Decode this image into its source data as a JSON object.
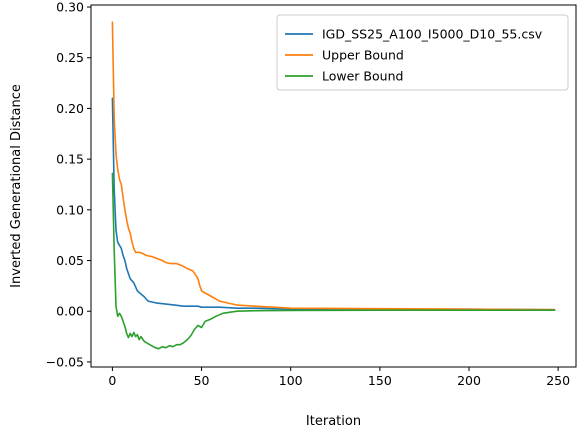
{
  "chart_data": {
    "type": "line",
    "xlabel": "Iteration",
    "ylabel": "Inverted Generational Distance",
    "xlim": [
      -12,
      260
    ],
    "ylim": [
      -0.055,
      0.302
    ],
    "xticks": [
      0,
      50,
      100,
      150,
      200,
      250
    ],
    "yticks": [
      -0.05,
      0.0,
      0.05,
      0.1,
      0.15,
      0.2,
      0.25,
      0.3
    ],
    "ytick_labels": [
      "−0.05",
      "0.00",
      "0.05",
      "0.10",
      "0.15",
      "0.20",
      "0.25",
      "0.30"
    ],
    "grid": false,
    "legend_position": "top-right",
    "series": [
      {
        "name": "IGD_SS25_A100_I5000_D10_55.csv",
        "color": "#1f77b4",
        "points": [
          [
            0,
            0.21
          ],
          [
            1,
            0.12
          ],
          [
            2,
            0.08
          ],
          [
            3,
            0.068
          ],
          [
            4,
            0.065
          ],
          [
            5,
            0.062
          ],
          [
            6,
            0.055
          ],
          [
            7,
            0.05
          ],
          [
            8,
            0.042
          ],
          [
            10,
            0.032
          ],
          [
            12,
            0.028
          ],
          [
            14,
            0.02
          ],
          [
            16,
            0.017
          ],
          [
            18,
            0.014
          ],
          [
            20,
            0.01
          ],
          [
            25,
            0.008
          ],
          [
            30,
            0.007
          ],
          [
            35,
            0.006
          ],
          [
            40,
            0.005
          ],
          [
            48,
            0.005
          ],
          [
            50,
            0.004
          ],
          [
            60,
            0.004
          ],
          [
            70,
            0.003
          ],
          [
            80,
            0.003
          ],
          [
            100,
            0.002
          ],
          [
            150,
            0.002
          ],
          [
            200,
            0.002
          ],
          [
            248,
            0.0015
          ]
        ]
      },
      {
        "name": "Upper Bound",
        "color": "#ff7f0e",
        "points": [
          [
            0,
            0.285
          ],
          [
            1,
            0.19
          ],
          [
            2,
            0.155
          ],
          [
            3,
            0.14
          ],
          [
            4,
            0.13
          ],
          [
            5,
            0.125
          ],
          [
            6,
            0.112
          ],
          [
            7,
            0.1
          ],
          [
            8,
            0.09
          ],
          [
            9,
            0.082
          ],
          [
            10,
            0.077
          ],
          [
            11,
            0.068
          ],
          [
            12,
            0.062
          ],
          [
            13,
            0.058
          ],
          [
            15,
            0.058
          ],
          [
            17,
            0.057
          ],
          [
            19,
            0.055
          ],
          [
            22,
            0.054
          ],
          [
            25,
            0.052
          ],
          [
            28,
            0.05
          ],
          [
            30,
            0.048
          ],
          [
            33,
            0.047
          ],
          [
            36,
            0.047
          ],
          [
            39,
            0.045
          ],
          [
            42,
            0.042
          ],
          [
            45,
            0.04
          ],
          [
            47,
            0.035
          ],
          [
            48,
            0.032
          ],
          [
            49,
            0.025
          ],
          [
            50,
            0.02
          ],
          [
            53,
            0.017
          ],
          [
            56,
            0.014
          ],
          [
            60,
            0.01
          ],
          [
            65,
            0.008
          ],
          [
            70,
            0.006
          ],
          [
            80,
            0.005
          ],
          [
            90,
            0.004
          ],
          [
            100,
            0.003
          ],
          [
            150,
            0.0025
          ],
          [
            200,
            0.002
          ],
          [
            248,
            0.0015
          ]
        ]
      },
      {
        "name": "Lower Bound",
        "color": "#2ca02c",
        "points": [
          [
            0,
            0.136
          ],
          [
            1,
            0.06
          ],
          [
            2,
            0.005
          ],
          [
            3,
            -0.005
          ],
          [
            4,
            -0.002
          ],
          [
            5,
            -0.005
          ],
          [
            6,
            -0.01
          ],
          [
            7,
            -0.015
          ],
          [
            8,
            -0.022
          ],
          [
            9,
            -0.026
          ],
          [
            10,
            -0.022
          ],
          [
            11,
            -0.025
          ],
          [
            12,
            -0.021
          ],
          [
            13,
            -0.025
          ],
          [
            14,
            -0.023
          ],
          [
            15,
            -0.028
          ],
          [
            16,
            -0.025
          ],
          [
            18,
            -0.03
          ],
          [
            20,
            -0.032
          ],
          [
            22,
            -0.034
          ],
          [
            24,
            -0.036
          ],
          [
            26,
            -0.037
          ],
          [
            28,
            -0.035
          ],
          [
            30,
            -0.036
          ],
          [
            32,
            -0.034
          ],
          [
            34,
            -0.035
          ],
          [
            36,
            -0.033
          ],
          [
            38,
            -0.033
          ],
          [
            40,
            -0.031
          ],
          [
            42,
            -0.028
          ],
          [
            44,
            -0.024
          ],
          [
            46,
            -0.018
          ],
          [
            48,
            -0.014
          ],
          [
            50,
            -0.016
          ],
          [
            52,
            -0.01
          ],
          [
            55,
            -0.008
          ],
          [
            58,
            -0.005
          ],
          [
            62,
            -0.002
          ],
          [
            66,
            -0.001
          ],
          [
            70,
            0.0
          ],
          [
            80,
            0.0005
          ],
          [
            100,
            0.0008
          ],
          [
            150,
            0.001
          ],
          [
            200,
            0.001
          ],
          [
            248,
            0.001
          ]
        ]
      }
    ]
  }
}
